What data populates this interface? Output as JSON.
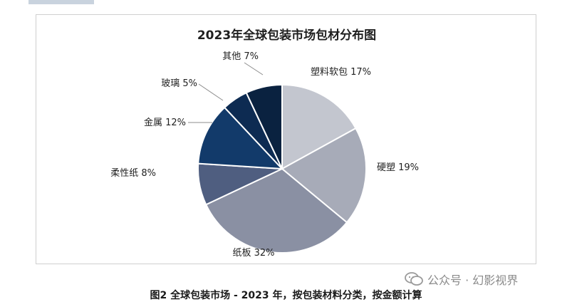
{
  "chart_data": {
    "type": "pie",
    "title": "2023年全球包装市场包材分布图",
    "slices": [
      {
        "label": "塑料软包",
        "value": 17,
        "display": "塑料软包 17%",
        "color": "#c3c6cf"
      },
      {
        "label": "硬塑",
        "value": 19,
        "display": "硬塑 19%",
        "color": "#a7abb8"
      },
      {
        "label": "纸板",
        "value": 32,
        "display": "纸板 32%",
        "color": "#8a90a3"
      },
      {
        "label": "柔性纸",
        "value": 8,
        "display": "柔性纸 8%",
        "color": "#4f5e80"
      },
      {
        "label": "金属",
        "value": 12,
        "display": "金属 12%",
        "color": "#123a6a"
      },
      {
        "label": "玻璃",
        "value": 5,
        "display": "玻璃 5%",
        "color": "#0d2b52"
      },
      {
        "label": "其他",
        "value": 7,
        "display": "其他 7%",
        "color": "#0a2240"
      }
    ]
  },
  "caption": "图2    全球包装市场 - 2023 年，按包装材料分类，按金额计算",
  "watermark": {
    "text": "公众号 · 幻影视界",
    "icon": "wechat-icon"
  }
}
